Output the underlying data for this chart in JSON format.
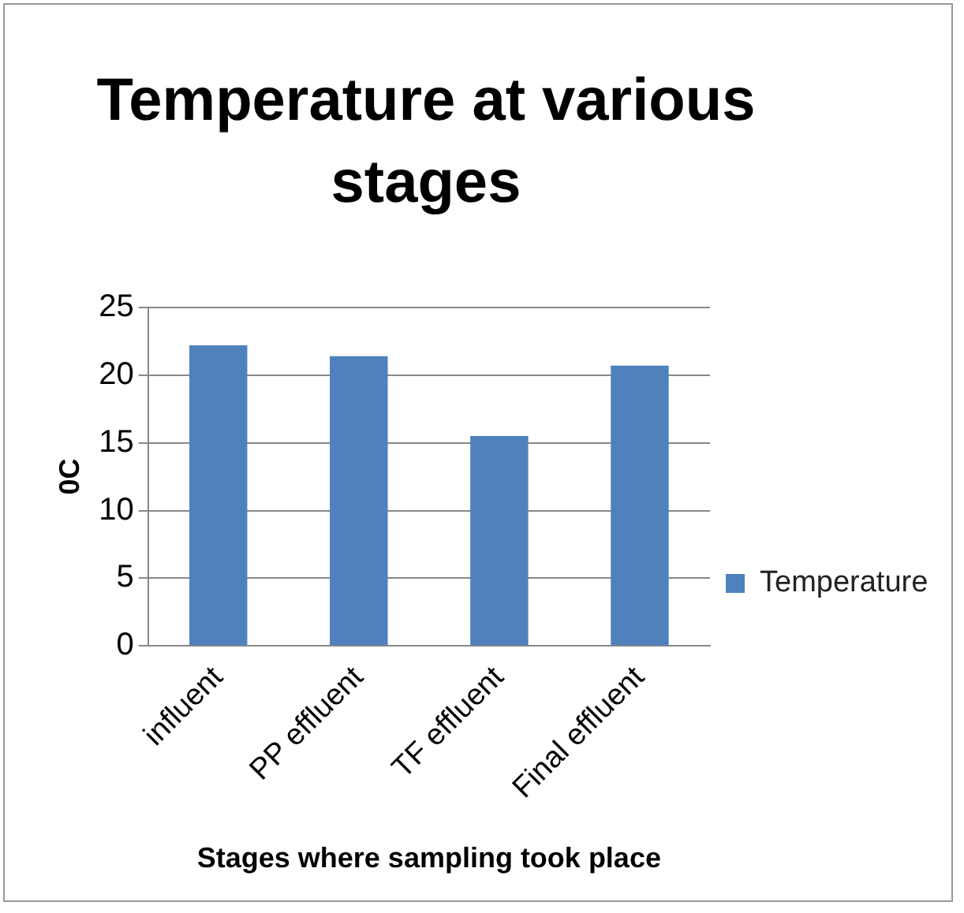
{
  "chart_data": {
    "type": "bar",
    "title": "Temperature at various stages",
    "xlabel": "Stages where sampling took place",
    "ylabel": "0C",
    "categories": [
      "influent",
      "PP effluent",
      "TF effluent",
      "Final effluent"
    ],
    "series": [
      {
        "name": "Temperature",
        "color": "#4f81bd",
        "values": [
          22.2,
          21.4,
          15.5,
          20.7
        ]
      }
    ],
    "ylim": [
      0,
      25
    ],
    "yticks": [
      0,
      5,
      10,
      15,
      20,
      25
    ],
    "grid": "y",
    "legend": "right"
  }
}
